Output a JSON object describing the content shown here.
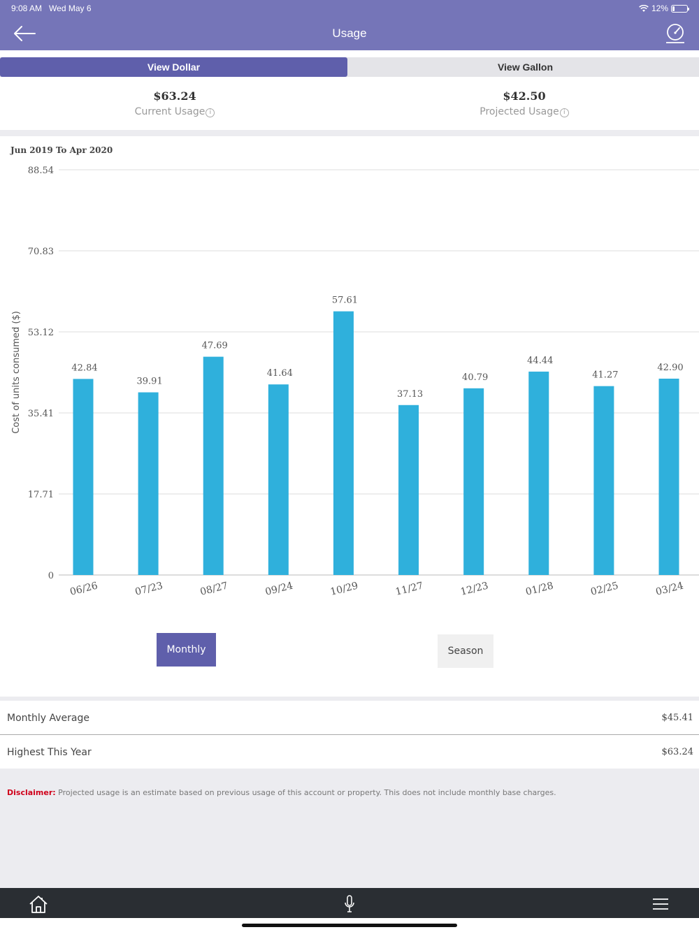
{
  "status": {
    "time": "9:08 AM",
    "date": "Wed May 6",
    "battery": "12%"
  },
  "nav": {
    "title": "Usage"
  },
  "toggle": {
    "dollar": "View Dollar",
    "gallon": "View Gallon"
  },
  "summary": {
    "current_value": "$63.24",
    "current_label": "Current Usage",
    "projected_value": "$42.50",
    "projected_label": "Projected Usage",
    "info_glyph": "i"
  },
  "chart_title": "Jun 2019 To Apr 2020",
  "chart_data": {
    "type": "bar",
    "categories": [
      "06/26",
      "07/23",
      "08/27",
      "09/24",
      "10/29",
      "11/27",
      "12/23",
      "01/28",
      "02/25",
      "03/24"
    ],
    "values": [
      42.84,
      39.91,
      47.69,
      41.64,
      57.61,
      37.13,
      40.79,
      44.44,
      41.27,
      42.9
    ],
    "value_labels": [
      "42.84",
      "39.91",
      "47.69",
      "41.64",
      "57.61",
      "37.13",
      "40.79",
      "44.44",
      "41.27",
      "42.90"
    ],
    "ylabel": "Cost of units consumed ($)",
    "yticks": [
      "0",
      "17.71",
      "35.41",
      "53.12",
      "70.83",
      "88.54"
    ],
    "ylim": [
      0,
      88.54
    ],
    "grid": true,
    "bar_color": "#2fb0dc"
  },
  "buttons": {
    "monthly": "Monthly",
    "season": "Season"
  },
  "stats": [
    {
      "label": "Monthly Average",
      "value": "$45.41"
    },
    {
      "label": "Highest This Year",
      "value": "$63.24"
    }
  ],
  "disclaimer": {
    "label": "Disclaimer:",
    "text": " Projected usage is an estimate based on previous usage of this account or property. This does not include monthly base charges."
  },
  "colors": {
    "header": "#7575b8",
    "accent": "#5f5fab",
    "tabbar": "#2a2e33"
  },
  "tabs": [
    {
      "icon": "home-icon"
    },
    {
      "icon": "microphone-icon"
    },
    {
      "icon": "menu-icon"
    }
  ]
}
